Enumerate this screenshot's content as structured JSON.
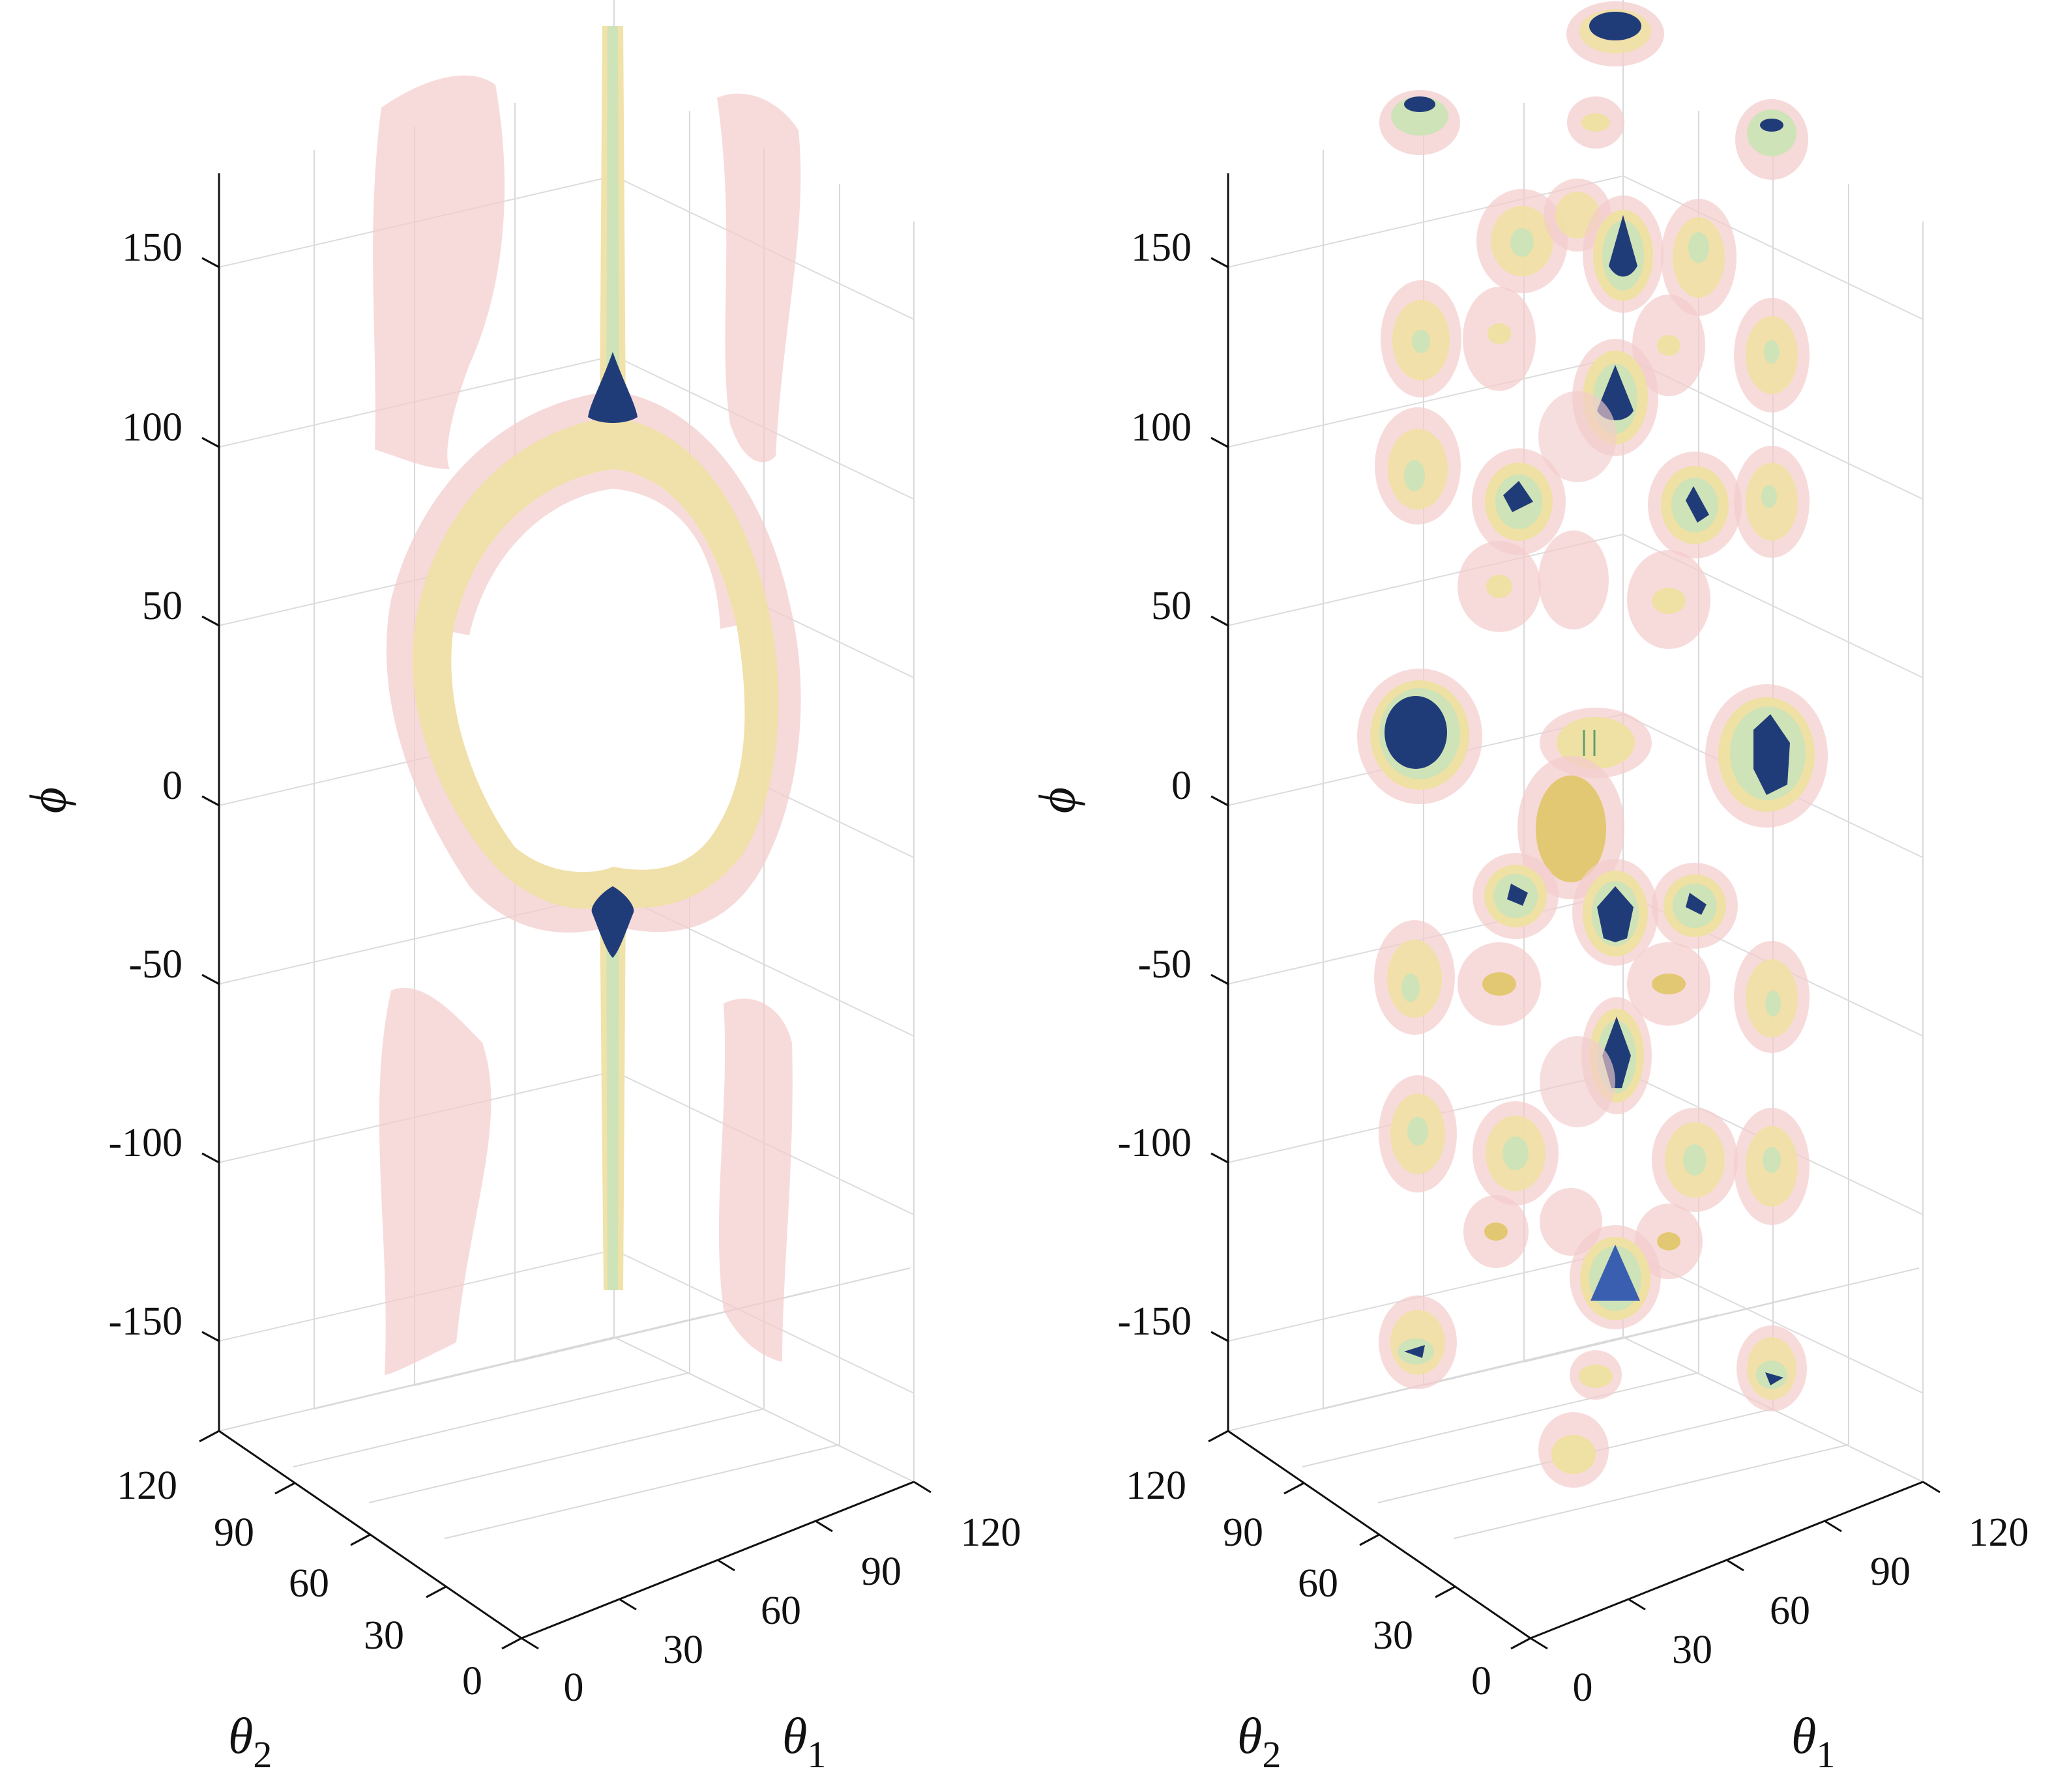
{
  "chart_data": [
    {
      "type": "isosurface-3d",
      "xlabel": "θ",
      "xlabel_sub": "1",
      "ylabel": "θ",
      "ylabel_sub": "2",
      "zlabel": "ϕ",
      "xticks": [
        "0",
        "30",
        "60",
        "90",
        "120"
      ],
      "yticks": [
        "0",
        "30",
        "60",
        "90",
        "120"
      ],
      "zticks": [
        "150",
        "100",
        "50",
        "0",
        "-50",
        "-100",
        "-150"
      ],
      "xlim": [
        0,
        120
      ],
      "ylim": [
        0,
        120
      ],
      "zlim": [
        -180,
        180
      ],
      "grid": true,
      "colors": {
        "level1": "#f3cccc",
        "level2": "#efe0a3",
        "level3": "#cfe3b8",
        "level4": "#203c78"
      }
    },
    {
      "type": "isosurface-3d",
      "xlabel": "θ",
      "xlabel_sub": "1",
      "ylabel": "θ",
      "ylabel_sub": "2",
      "zlabel": "ϕ",
      "xticks": [
        "0",
        "30",
        "60",
        "90",
        "120"
      ],
      "yticks": [
        "0",
        "30",
        "60",
        "90",
        "120"
      ],
      "zticks": [
        "150",
        "100",
        "50",
        "0",
        "-50",
        "-100",
        "-150"
      ],
      "xlim": [
        0,
        120
      ],
      "ylim": [
        0,
        120
      ],
      "zlim": [
        -180,
        180
      ],
      "grid": true,
      "colors": {
        "level1": "#f3cccc",
        "level2": "#efe0a3",
        "level3": "#cfe3b8",
        "level4": "#203c78"
      }
    }
  ]
}
